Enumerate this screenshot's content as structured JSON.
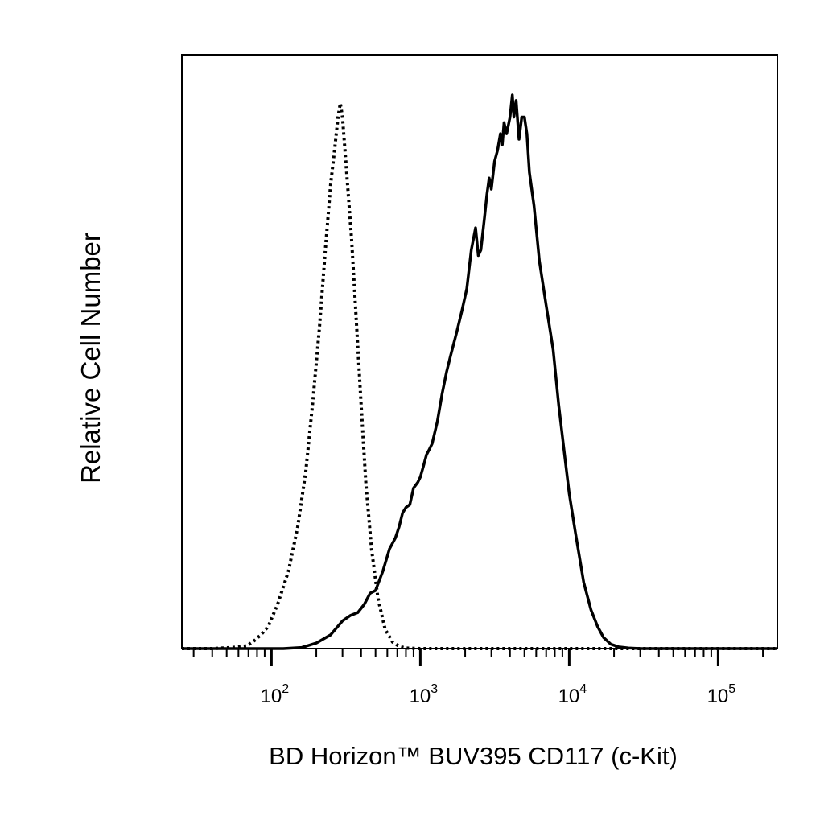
{
  "chart_data": {
    "type": "line",
    "title": "",
    "xlabel": "BD Horizon™ BUV395 CD117 (c-Kit)",
    "ylabel": "Relative Cell Number",
    "x_scale": "log",
    "xlim": [
      25,
      250000
    ],
    "ylim": [
      0,
      1
    ],
    "grid": false,
    "legend": "none",
    "x_tick_labels": [
      {
        "base": "10",
        "exp": "2",
        "value": 100
      },
      {
        "base": "10",
        "exp": "3",
        "value": 1000
      },
      {
        "base": "10",
        "exp": "4",
        "value": 10000
      },
      {
        "base": "10",
        "exp": "5",
        "value": 100000
      }
    ],
    "series": [
      {
        "style": "dotted",
        "color": "#000000",
        "x": [
          25,
          40,
          55,
          68,
          75,
          85,
          95,
          110,
          130,
          150,
          170,
          190,
          210,
          230,
          250,
          265,
          280,
          290,
          300,
          320,
          345,
          370,
          400,
          430,
          470,
          520,
          580,
          650,
          720,
          800,
          1000,
          2000,
          5000,
          20000,
          250000
        ],
        "y": [
          0.0,
          0.0,
          0.002,
          0.005,
          0.012,
          0.025,
          0.04,
          0.08,
          0.14,
          0.22,
          0.32,
          0.45,
          0.58,
          0.72,
          0.84,
          0.9,
          0.96,
          0.985,
          0.96,
          0.86,
          0.74,
          0.6,
          0.44,
          0.3,
          0.18,
          0.09,
          0.035,
          0.012,
          0.004,
          0.001,
          0.0,
          0.0,
          0.0,
          0.0,
          0.0
        ]
      },
      {
        "style": "solid",
        "color": "#000000",
        "x": [
          25,
          120,
          160,
          200,
          250,
          300,
          340,
          380,
          420,
          460,
          500,
          560,
          620,
          680,
          720,
          760,
          800,
          850,
          900,
          960,
          1000,
          1050,
          1100,
          1150,
          1200,
          1300,
          1400,
          1500,
          1600,
          1750,
          1900,
          2050,
          2200,
          2350,
          2450,
          2550,
          2700,
          2800,
          2900,
          3000,
          3150,
          3300,
          3450,
          3550,
          3650,
          3800,
          4000,
          4150,
          4250,
          4400,
          4600,
          4800,
          5000,
          5200,
          5400,
          5800,
          6300,
          7000,
          7800,
          8500,
          9300,
          10000,
          11000,
          12500,
          14000,
          15500,
          17000,
          19000,
          21500,
          25000,
          30000,
          40000,
          60000,
          100000,
          250000
        ],
        "y": [
          0.0,
          0.0,
          0.002,
          0.01,
          0.025,
          0.05,
          0.06,
          0.065,
          0.08,
          0.1,
          0.105,
          0.14,
          0.18,
          0.2,
          0.22,
          0.245,
          0.255,
          0.26,
          0.29,
          0.3,
          0.31,
          0.33,
          0.35,
          0.36,
          0.37,
          0.41,
          0.46,
          0.5,
          0.53,
          0.57,
          0.61,
          0.65,
          0.72,
          0.76,
          0.71,
          0.72,
          0.78,
          0.82,
          0.85,
          0.83,
          0.88,
          0.9,
          0.93,
          0.91,
          0.95,
          0.93,
          0.96,
          1.0,
          0.96,
          0.99,
          0.92,
          0.96,
          0.96,
          0.93,
          0.86,
          0.8,
          0.7,
          0.62,
          0.54,
          0.44,
          0.35,
          0.28,
          0.21,
          0.12,
          0.07,
          0.04,
          0.02,
          0.008,
          0.003,
          0.001,
          0.0,
          0.0,
          0.0,
          0.0,
          0.0
        ]
      }
    ]
  }
}
